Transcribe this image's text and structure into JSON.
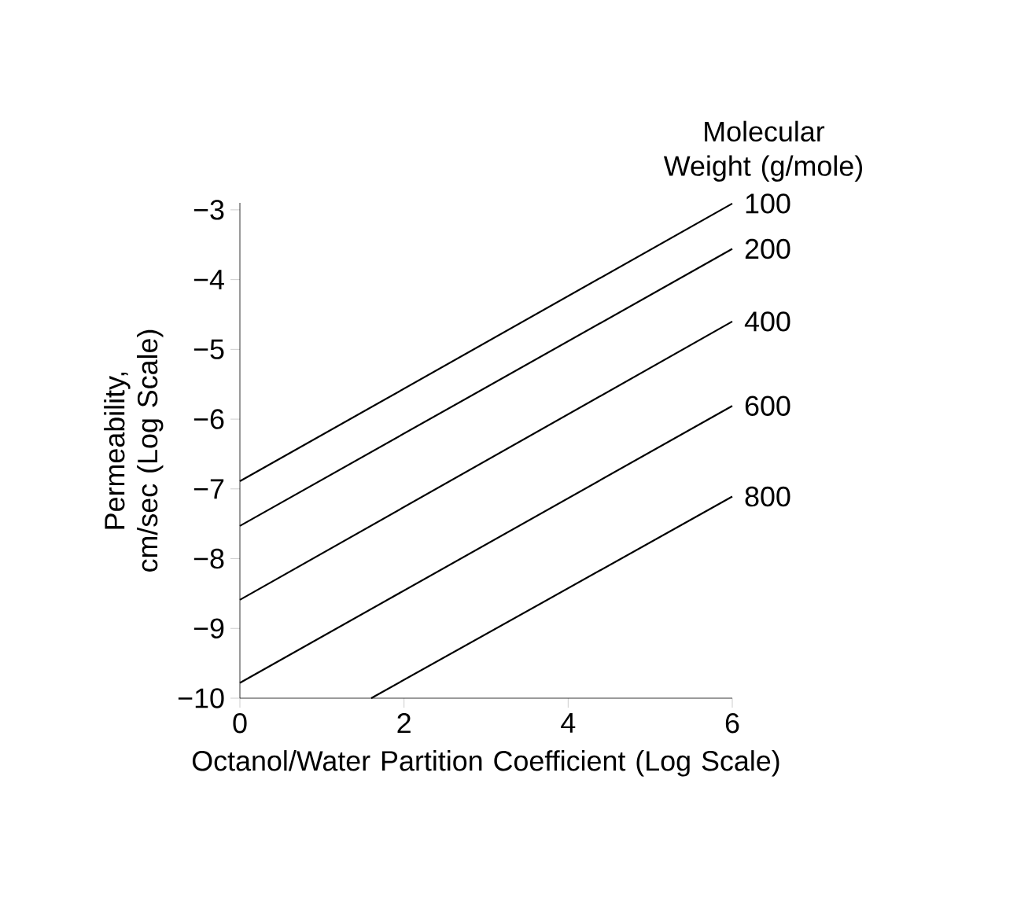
{
  "chart_data": {
    "type": "line",
    "xlabel": "Octanol/Water Partition Coefficient (Log Scale)",
    "ylabel": "Permeability, cm/sec (Log Scale)",
    "legend_title": "Molecular Weight (g/mole)",
    "xlim": [
      0,
      6
    ],
    "ylim": [
      -10,
      -2.9
    ],
    "xticks": [
      0,
      2,
      4,
      6
    ],
    "yticks": [
      {
        "value": -3,
        "label": "−3"
      },
      {
        "value": -4,
        "label": "−4"
      },
      {
        "value": -5,
        "label": "−5"
      },
      {
        "value": -6,
        "label": "−6"
      },
      {
        "value": -7,
        "label": "−7"
      },
      {
        "value": -8,
        "label": "−8"
      },
      {
        "value": -9,
        "label": "−9"
      },
      {
        "value": -10,
        "label": "−10"
      }
    ],
    "grid": false,
    "legend": false,
    "marker": "none",
    "line_style": "solid",
    "series": [
      {
        "name": "100",
        "color": "#000000",
        "x": [
          0,
          6
        ],
        "values": [
          -6.89,
          -2.91
        ]
      },
      {
        "name": "200",
        "color": "#000000",
        "x": [
          0,
          6
        ],
        "values": [
          -7.53,
          -3.56
        ]
      },
      {
        "name": "400",
        "color": "#000000",
        "x": [
          0,
          6
        ],
        "values": [
          -8.59,
          -4.6
        ]
      },
      {
        "name": "600",
        "color": "#000000",
        "x": [
          0,
          6
        ],
        "values": [
          -9.78,
          -5.81
        ]
      },
      {
        "name": "800",
        "color": "#000000",
        "x": [
          1.6,
          6
        ],
        "values": [
          -10,
          -7.11
        ]
      }
    ]
  }
}
